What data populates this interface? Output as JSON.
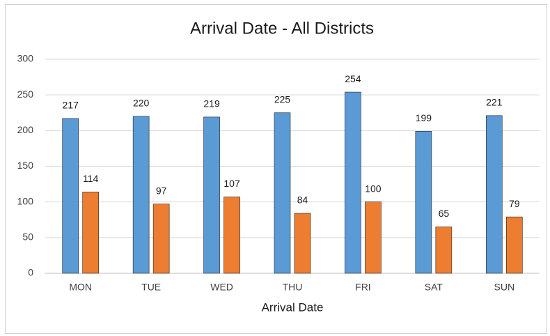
{
  "chart_data": {
    "type": "bar",
    "title": "Arrival Date - All Districts",
    "x_label": "Arrival Date",
    "categories": [
      "MON",
      "TUE",
      "WED",
      "THU",
      "FRI",
      "SAT",
      "SUN"
    ],
    "series": [
      {
        "color": "#5b9bd5",
        "values": [
          217,
          220,
          219,
          225,
          254,
          199,
          221
        ]
      },
      {
        "color": "#ed7d31",
        "values": [
          114,
          97,
          107,
          84,
          100,
          65,
          79
        ]
      }
    ],
    "ylim": [
      0,
      300
    ],
    "yticks": [
      0,
      50,
      100,
      150,
      200,
      250,
      300
    ],
    "grid": true
  }
}
